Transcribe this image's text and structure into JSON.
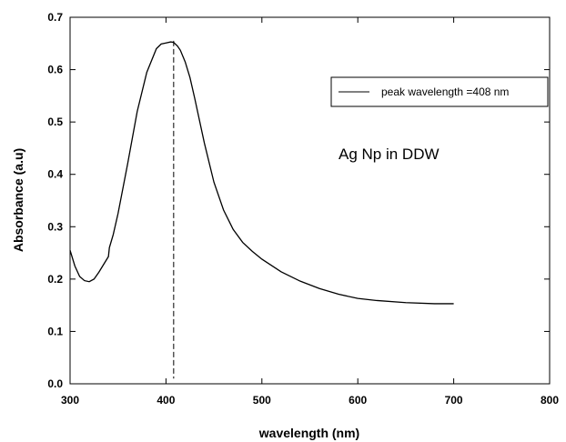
{
  "chart_data": {
    "type": "line",
    "title": "",
    "xlabel": "wavelength (nm)",
    "ylabel": "Absorbance (a.u)",
    "xlim": [
      300,
      800
    ],
    "ylim": [
      0.0,
      0.7
    ],
    "x_ticks": [
      "300",
      "400",
      "500",
      "600",
      "700",
      "800"
    ],
    "y_ticks": [
      "0.0",
      "0.1",
      "0.2",
      "0.3",
      "0.4",
      "0.5",
      "0.6",
      "0.7"
    ],
    "grid": false,
    "legend_position": "top-right",
    "series": [
      {
        "name": "peak wavelength =408 nm",
        "color": "#000000",
        "x": [
          300,
          305,
          310,
          315,
          320,
          325,
          330,
          335,
          340,
          341,
          345,
          350,
          360,
          370,
          380,
          390,
          395,
          400,
          405,
          408,
          412,
          415,
          420,
          425,
          430,
          440,
          450,
          460,
          470,
          480,
          490,
          500,
          520,
          540,
          560,
          580,
          600,
          620,
          650,
          680,
          700
        ],
        "y": [
          0.255,
          0.225,
          0.205,
          0.197,
          0.195,
          0.2,
          0.213,
          0.228,
          0.243,
          0.26,
          0.285,
          0.325,
          0.42,
          0.52,
          0.595,
          0.64,
          0.649,
          0.651,
          0.653,
          0.652,
          0.645,
          0.637,
          0.615,
          0.585,
          0.545,
          0.46,
          0.385,
          0.332,
          0.295,
          0.27,
          0.253,
          0.238,
          0.214,
          0.196,
          0.182,
          0.171,
          0.163,
          0.159,
          0.155,
          0.153,
          0.153
        ]
      }
    ],
    "reference_line": {
      "x": 408,
      "style": "dashed",
      "y_range": [
        0.01,
        0.655
      ]
    },
    "annotations": [
      "Ag Np in DDW"
    ]
  }
}
